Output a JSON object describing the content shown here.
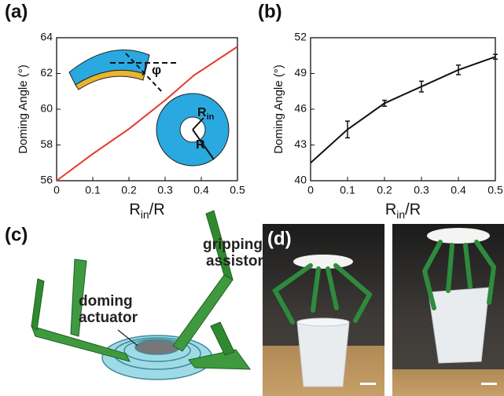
{
  "panel_labels": [
    "(a)",
    "(b)",
    "(c)",
    "(d)"
  ],
  "illustration_labels": [
    "gripping",
    "assistor",
    "doming",
    "actuator"
  ],
  "chart_data": [
    {
      "type": "line",
      "ylabel": "Doming Angle (°)",
      "xlabel": [
        "R",
        "in",
        "/R"
      ],
      "x": [
        0,
        0.1,
        0.2,
        0.3,
        0.38,
        0.5
      ],
      "values": [
        56,
        57.5,
        58.9,
        60.5,
        61.9,
        63.5
      ],
      "color": "#e8382c",
      "xlim": [
        0,
        0.5
      ],
      "xticks": [
        0,
        0.1,
        0.2,
        0.3,
        0.4,
        0.5
      ],
      "ylim": [
        56,
        64
      ],
      "yticks": [
        56,
        58,
        60,
        62,
        64
      ],
      "annotations": {
        "phi": "φ",
        "r_in": [
          "R",
          "in"
        ],
        "r": "R"
      }
    },
    {
      "type": "line",
      "ylabel": "Doming Angle (°)",
      "xlabel": [
        "R",
        "in",
        "/R"
      ],
      "x": [
        0,
        0.1,
        0.2,
        0.3,
        0.4,
        0.5
      ],
      "values": [
        41.5,
        44.3,
        46.5,
        47.9,
        49.3,
        50.4
      ],
      "errors": [
        null,
        0.7,
        0.25,
        0.45,
        0.4,
        0.2
      ],
      "color": "#111111",
      "xlim": [
        0,
        0.5
      ],
      "xticks": [
        0,
        0.1,
        0.2,
        0.3,
        0.4,
        0.5
      ],
      "ylim": [
        40,
        52
      ],
      "yticks": [
        40,
        43,
        46,
        49,
        52
      ]
    }
  ]
}
